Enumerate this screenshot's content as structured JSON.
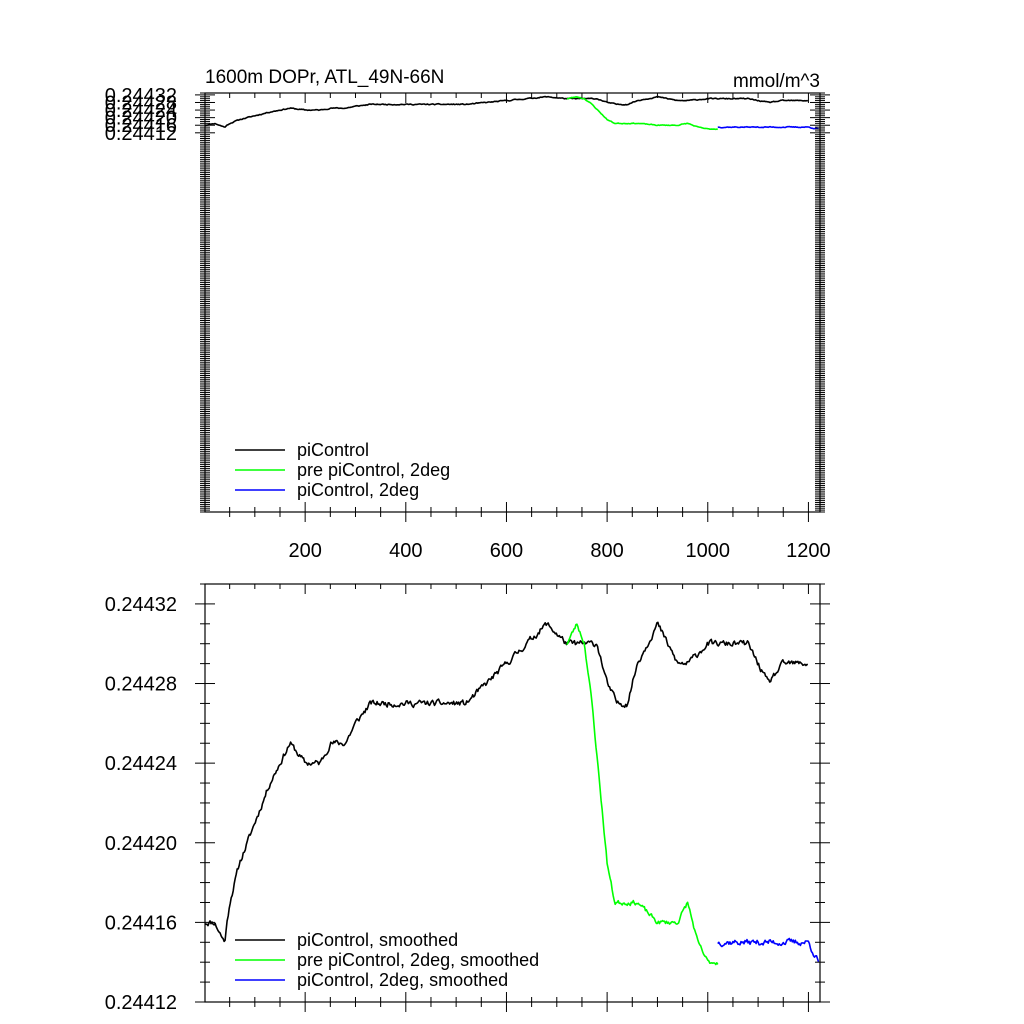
{
  "colors": {
    "piControl": "#000000",
    "pre_piControl": "#00ff00",
    "piControl_2deg": "#0000ff"
  },
  "chart_data": [
    {
      "type": "line",
      "title": "1600m DOPr, ATL_49N-66N",
      "units": "mmol/m^3",
      "xlabel": "",
      "ylabel": "",
      "xlim": [
        1,
        1223
      ],
      "ylim": [
        0.24212,
        0.24433
      ],
      "xticks": [
        200,
        400,
        600,
        800,
        1000,
        1200
      ],
      "xtick_labels": [
        "200",
        "400",
        "600",
        "800",
        "1000",
        "1200"
      ],
      "yticks": [
        0.24412,
        0.24416,
        0.2442,
        0.24424,
        0.24428,
        0.24432
      ],
      "ytick_labels": [
        "0.24412",
        "0.24416",
        "0.24420",
        "0.24424",
        "0.24428",
        "0.24432"
      ],
      "legend_position": "bottom-left",
      "series": [
        {
          "name": "piControl",
          "color": "#000000",
          "seed": 11,
          "noise": 2.2e-06,
          "x": [
            1,
            20,
            40,
            50,
            70,
            100,
            130,
            150,
            170,
            200,
            230,
            250,
            280,
            300,
            330,
            360,
            400,
            440,
            480,
            520,
            560,
            600,
            640,
            680,
            720,
            760,
            780,
            800,
            820,
            840,
            860,
            880,
            900,
            920,
            940,
            960,
            1000,
            1040,
            1080,
            1100,
            1120,
            1150,
            1180,
            1200
          ],
          "y": [
            0.24416,
            0.24417,
            0.24415,
            0.24417,
            0.24419,
            0.24421,
            0.24423,
            0.24424,
            0.24425,
            0.24424,
            0.24424,
            0.24425,
            0.24425,
            0.24426,
            0.24427,
            0.24427,
            0.24427,
            0.24427,
            0.24427,
            0.24427,
            0.24428,
            0.24429,
            0.2443,
            0.24431,
            0.2443,
            0.2443,
            0.2443,
            0.24428,
            0.24427,
            0.24427,
            0.24429,
            0.2443,
            0.24431,
            0.2443,
            0.24429,
            0.24429,
            0.2443,
            0.2443,
            0.2443,
            0.24429,
            0.24428,
            0.24429,
            0.24429,
            0.24429
          ]
        },
        {
          "name": "pre piControl, 2deg",
          "color": "#00ff00",
          "seed": 23,
          "noise": 1.8e-06,
          "x": [
            720,
            740,
            755,
            770,
            785,
            800,
            815,
            830,
            860,
            900,
            940,
            960,
            980,
            1000,
            1010,
            1020
          ],
          "y": [
            0.2443,
            0.24431,
            0.2443,
            0.24427,
            0.24423,
            0.24419,
            0.24417,
            0.24417,
            0.24417,
            0.24416,
            0.24416,
            0.24417,
            0.24415,
            0.24414,
            0.24414,
            0.24414
          ]
        },
        {
          "name": "piControl, 2deg",
          "color": "#0000ff",
          "seed": 37,
          "noise": 2.2e-06,
          "x": [
            1020,
            1040,
            1060,
            1080,
            1100,
            1120,
            1140,
            1160,
            1180,
            1200,
            1220
          ],
          "y": [
            0.24415,
            0.24415,
            0.24415,
            0.24415,
            0.24415,
            0.24415,
            0.24415,
            0.24415,
            0.24415,
            0.24415,
            0.24414
          ]
        }
      ],
      "legend": [
        "piControl",
        "pre piControl, 2deg",
        "piControl, 2deg"
      ]
    },
    {
      "type": "line",
      "title": "",
      "units": "",
      "xlabel": "",
      "ylabel": "",
      "xlim": [
        1,
        1223
      ],
      "ylim": [
        0.24412,
        0.24433
      ],
      "xticks": [
        200,
        400,
        600,
        800,
        1000,
        1200
      ],
      "xtick_labels": [],
      "yticks": [
        0.24412,
        0.24416,
        0.2442,
        0.24424,
        0.24428,
        0.24432
      ],
      "ytick_labels": [
        "0.24412",
        "0.24416",
        "0.24420",
        "0.24424",
        "0.24428",
        "0.24432"
      ],
      "legend_position": "bottom-left",
      "series": [
        {
          "name": "piControl, smoothed",
          "color": "#000000",
          "seed": 11,
          "noise": 1.3e-06,
          "x": [
            1,
            20,
            40,
            50,
            70,
            100,
            130,
            150,
            170,
            200,
            230,
            250,
            280,
            300,
            330,
            360,
            400,
            440,
            480,
            520,
            560,
            600,
            640,
            680,
            720,
            760,
            780,
            800,
            820,
            840,
            860,
            880,
            900,
            920,
            940,
            960,
            1000,
            1040,
            1080,
            1100,
            1120,
            1150,
            1180,
            1200
          ],
          "y": [
            0.24416,
            0.24416,
            0.24415,
            0.24417,
            0.24419,
            0.24421,
            0.24423,
            0.24424,
            0.24425,
            0.24424,
            0.24424,
            0.24425,
            0.24425,
            0.24426,
            0.24427,
            0.24427,
            0.24427,
            0.24427,
            0.24427,
            0.24427,
            0.24428,
            0.24429,
            0.2443,
            0.24431,
            0.2443,
            0.2443,
            0.2443,
            0.24428,
            0.24427,
            0.24427,
            0.24429,
            0.2443,
            0.24431,
            0.2443,
            0.24429,
            0.24429,
            0.2443,
            0.2443,
            0.2443,
            0.24429,
            0.24428,
            0.24429,
            0.24429,
            0.24429
          ]
        },
        {
          "name": "pre piControl, 2deg, smoothed",
          "color": "#00ff00",
          "seed": 23,
          "noise": 1e-06,
          "x": [
            720,
            740,
            755,
            770,
            785,
            800,
            815,
            830,
            860,
            900,
            940,
            960,
            980,
            1000,
            1010,
            1020
          ],
          "y": [
            0.2443,
            0.24431,
            0.2443,
            0.24427,
            0.24423,
            0.24419,
            0.24417,
            0.24417,
            0.24417,
            0.24416,
            0.24416,
            0.24417,
            0.24415,
            0.24414,
            0.24414,
            0.24414
          ]
        },
        {
          "name": "piControl, 2deg, smoothed",
          "color": "#0000ff",
          "seed": 37,
          "noise": 1.3e-06,
          "x": [
            1020,
            1040,
            1060,
            1080,
            1100,
            1120,
            1140,
            1160,
            1180,
            1200,
            1220
          ],
          "y": [
            0.24415,
            0.24415,
            0.24415,
            0.24415,
            0.24415,
            0.24415,
            0.24415,
            0.24415,
            0.24415,
            0.24415,
            0.24414
          ]
        }
      ],
      "legend": [
        "piControl, smoothed",
        "pre piControl, 2deg, smoothed",
        "piControl, 2deg, smoothed"
      ]
    }
  ]
}
